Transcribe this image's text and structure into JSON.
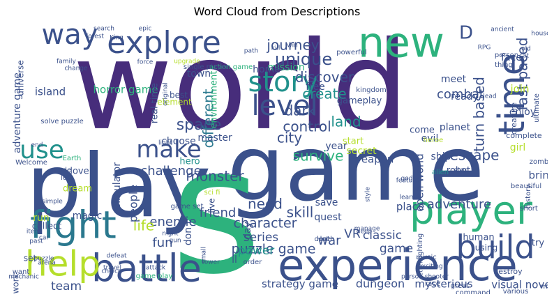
{
  "chart_data": {
    "type": "word_cloud",
    "title": "Word Cloud from Descriptions",
    "xlabel": "",
    "ylabel": "",
    "words": [
      {
        "text": "world",
        "weight": 1.0,
        "color": "#472d7b"
      },
      {
        "text": "game",
        "weight": 0.82,
        "color": "#3b518b"
      },
      {
        "text": "play",
        "weight": 0.72,
        "color": "#3b518b"
      },
      {
        "text": "s",
        "weight": 0.7,
        "color": "#2db27d"
      },
      {
        "text": "experience",
        "weight": 0.42,
        "color": "#3b518b"
      },
      {
        "text": "new",
        "weight": 0.38,
        "color": "#2db27d"
      },
      {
        "text": "battle",
        "weight": 0.36,
        "color": "#3b518b"
      },
      {
        "text": "explore",
        "weight": 0.34,
        "color": "#3b518b"
      },
      {
        "text": "player",
        "weight": 0.34,
        "color": "#2db27d"
      },
      {
        "text": "way",
        "weight": 0.32,
        "color": "#3b518b"
      },
      {
        "text": "help",
        "weight": 0.31,
        "color": "#b5de2b"
      },
      {
        "text": "fight",
        "weight": 0.3,
        "color": "#2a788e"
      },
      {
        "text": "time",
        "weight": 0.28,
        "color": "#3b518b"
      },
      {
        "text": "level",
        "weight": 0.27,
        "color": "#3b518b"
      },
      {
        "text": "build",
        "weight": 0.27,
        "color": "#3b518b"
      },
      {
        "text": "story",
        "weight": 0.25,
        "color": "#21918c"
      },
      {
        "text": "make",
        "weight": 0.23,
        "color": "#3b518b"
      },
      {
        "text": "use",
        "weight": 0.22,
        "color": "#21918c"
      },
      {
        "text": "D",
        "weight": 0.14,
        "color": "#3b518b"
      },
      {
        "text": "unique",
        "weight": 0.14,
        "color": "#3b518b"
      },
      {
        "text": "journey",
        "weight": 0.12,
        "color": "#3b518b"
      },
      {
        "text": "discover",
        "weight": 0.12,
        "color": "#3b518b"
      },
      {
        "text": "create",
        "weight": 0.13,
        "color": "#21918c"
      },
      {
        "text": "dark",
        "weight": 0.13,
        "color": "#3b518b"
      },
      {
        "text": "land",
        "weight": 0.13,
        "color": "#21918c"
      },
      {
        "text": "control",
        "weight": 0.12,
        "color": "#3b518b"
      },
      {
        "text": "city",
        "weight": 0.12,
        "color": "#3b518b"
      },
      {
        "text": "space",
        "weight": 0.12,
        "color": "#3b518b"
      },
      {
        "text": "different",
        "weight": 0.11,
        "color": "#2a788e"
      },
      {
        "text": "survive",
        "weight": 0.11,
        "color": "#2db27d"
      },
      {
        "text": "escape",
        "weight": 0.11,
        "color": "#3b518b"
      },
      {
        "text": "turn based",
        "weight": 0.11,
        "color": "#3b518b"
      },
      {
        "text": "fast paced",
        "weight": 0.11,
        "color": "#3b518b"
      },
      {
        "text": "combat",
        "weight": 0.1,
        "color": "#3b518b"
      },
      {
        "text": "challenge",
        "weight": 0.1,
        "color": "#3b518b"
      },
      {
        "text": "monster",
        "weight": 0.12,
        "color": "#3b518b"
      },
      {
        "text": "character",
        "weight": 0.11,
        "color": "#3b518b"
      },
      {
        "text": "puzzle game",
        "weight": 0.11,
        "color": "#3b518b"
      },
      {
        "text": "adventure",
        "weight": 0.11,
        "color": "#3b518b"
      },
      {
        "text": "skill",
        "weight": 0.12,
        "color": "#3b518b"
      },
      {
        "text": "friend",
        "weight": 0.1,
        "color": "#3b518b"
      },
      {
        "text": "enemie",
        "weight": 0.11,
        "color": "#3b518b"
      },
      {
        "text": "need",
        "weight": 0.11,
        "color": "#3b518b"
      },
      {
        "text": "life",
        "weight": 0.11,
        "color": "#b5de2b"
      },
      {
        "text": "fun",
        "weight": 0.1,
        "color": "#3b518b"
      },
      {
        "text": "VR",
        "weight": 0.1,
        "color": "#3b518b"
      },
      {
        "text": "war",
        "weight": 0.1,
        "color": "#3b518b"
      },
      {
        "text": "classic",
        "weight": 0.1,
        "color": "#3b518b"
      },
      {
        "text": "series",
        "weight": 0.09,
        "color": "#3b518b"
      },
      {
        "text": "power",
        "weight": 0.09,
        "color": "#21918c"
      },
      {
        "text": "team",
        "weight": 0.09,
        "color": "#3b518b"
      },
      {
        "text": "strategy game",
        "weight": 0.07,
        "color": "#3b518b"
      },
      {
        "text": "dungeon",
        "weight": 0.08,
        "color": "#3b518b"
      },
      {
        "text": "mysterious",
        "weight": 0.07,
        "color": "#3b518b"
      },
      {
        "text": "visual novel",
        "weight": 0.07,
        "color": "#3b518b"
      },
      {
        "text": "bring",
        "weight": 0.08,
        "color": "#3b518b"
      },
      {
        "text": "weapon",
        "weight": 0.07,
        "color": "#3b518b"
      },
      {
        "text": "open world",
        "weight": 0.07,
        "color": "#3b518b"
      },
      {
        "text": "place",
        "weight": 0.08,
        "color": "#3b518b"
      },
      {
        "text": "game",
        "weight": 0.08,
        "color": "#3b518b"
      },
      {
        "text": "people",
        "weight": 0.08,
        "color": "#3b518b"
      },
      {
        "text": "horror game",
        "weight": 0.07,
        "color": "#2db27d"
      },
      {
        "text": "island",
        "weight": 0.07,
        "color": "#3b518b"
      },
      {
        "text": "town",
        "weight": 0.07,
        "color": "#3b518b"
      },
      {
        "text": "mission",
        "weight": 0.07,
        "color": "#2db27d"
      },
      {
        "text": "home",
        "weight": 0.07,
        "color": "#3b518b"
      },
      {
        "text": "free",
        "weight": 0.07,
        "color": "#3b518b"
      },
      {
        "text": "gameplay",
        "weight": 0.07,
        "color": "#3b518b"
      },
      {
        "text": "ready",
        "weight": 0.07,
        "color": "#3b518b"
      },
      {
        "text": "face",
        "weight": 0.07,
        "color": "#3b518b"
      },
      {
        "text": "join",
        "weight": 0.07,
        "color": "#b5de2b"
      },
      {
        "text": "planet",
        "weight": 0.07,
        "color": "#3b518b"
      },
      {
        "text": "meet",
        "weight": 0.07,
        "color": "#3b518b"
      },
      {
        "text": "evil",
        "weight": 0.07,
        "color": "#3b518b"
      },
      {
        "text": "ship",
        "weight": 0.07,
        "color": "#3b518b"
      },
      {
        "text": "girl",
        "weight": 0.07,
        "color": "#b5de2b"
      },
      {
        "text": "enjoy",
        "weight": 0.07,
        "color": "#3b518b"
      },
      {
        "text": "come",
        "weight": 0.06,
        "color": "#3b518b"
      },
      {
        "text": "robot",
        "weight": 0.06,
        "color": "#3b518b"
      },
      {
        "text": "year",
        "weight": 0.06,
        "color": "#3b518b"
      },
      {
        "text": "start",
        "weight": 0.06,
        "color": "#b5de2b"
      },
      {
        "text": "secret",
        "weight": 0.07,
        "color": "#b5de2b"
      },
      {
        "text": "save",
        "weight": 0.07,
        "color": "#3b518b"
      },
      {
        "text": "quest",
        "weight": 0.07,
        "color": "#3b518b"
      },
      {
        "text": "don t",
        "weight": 0.07,
        "color": "#3b518b"
      },
      {
        "text": "day",
        "weight": 0.06,
        "color": "#3b518b"
      },
      {
        "text": "live",
        "weight": 0.06,
        "color": "#3b518b"
      },
      {
        "text": "choose",
        "weight": 0.06,
        "color": "#3b518b"
      },
      {
        "text": "master",
        "weight": 0.06,
        "color": "#3b518b"
      },
      {
        "text": "hero",
        "weight": 0.06,
        "color": "#21918c"
      },
      {
        "text": "best",
        "weight": 0.06,
        "color": "#3b518b"
      },
      {
        "text": "element",
        "weight": 0.05,
        "color": "#b5de2b"
      },
      {
        "text": "real time",
        "weight": 0.06,
        "color": "#3b518b"
      },
      {
        "text": "environment",
        "weight": 0.05,
        "color": "#2db27d"
      },
      {
        "text": "simulator",
        "weight": 0.06,
        "color": "#3b518b"
      },
      {
        "text": "magic",
        "weight": 0.06,
        "color": "#3b518b"
      },
      {
        "text": "dream",
        "weight": 0.06,
        "color": "#b5de2b"
      },
      {
        "text": "love",
        "weight": 0.06,
        "color": "#3b518b"
      },
      {
        "text": "run",
        "weight": 0.06,
        "color": "#b5de2b"
      },
      {
        "text": "collect",
        "weight": 0.06,
        "color": "#3b518b"
      },
      {
        "text": "set",
        "weight": 0.06,
        "color": "#3b518b"
      },
      {
        "text": "work",
        "weight": 0.05,
        "color": "#3b518b"
      },
      {
        "text": "ll",
        "weight": 0.06,
        "color": "#3b518b"
      },
      {
        "text": "adventure game",
        "weight": 0.07,
        "color": "#3b518b"
      },
      {
        "text": "universe",
        "weight": 0.05,
        "color": "#3b518b"
      },
      {
        "text": "human",
        "weight": 0.06,
        "color": "#3b518b"
      },
      {
        "text": "try",
        "weight": 0.06,
        "color": "#3b518b"
      },
      {
        "text": "using",
        "weight": 0.05,
        "color": "#3b518b"
      },
      {
        "text": "destroy",
        "weight": 0.04,
        "color": "#3b518b"
      },
      {
        "text": "creature",
        "weight": 0.04,
        "color": "#3b518b"
      },
      {
        "text": "complete",
        "weight": 0.04,
        "color": "#3b518b"
      },
      {
        "text": "action game",
        "weight": 0.04,
        "color": "#2db27d"
      },
      {
        "text": "single player",
        "weight": 0.04,
        "color": "#3b518b"
      },
      {
        "text": "kingdom",
        "weight": 0.04,
        "color": "#3b518b"
      },
      {
        "text": "powerful",
        "weight": 0.04,
        "color": "#3b518b"
      },
      {
        "text": "thing",
        "weight": 0.04,
        "color": "#3b518b"
      },
      {
        "text": "person",
        "weight": 0.04,
        "color": "#3b518b"
      },
      {
        "text": "ultimate",
        "weight": 0.04,
        "color": "#3b518b"
      },
      {
        "text": "zombie",
        "weight": 0.04,
        "color": "#3b518b"
      },
      {
        "text": "heroe",
        "weight": 0.04,
        "color": "#b5de2b"
      },
      {
        "text": "alien",
        "weight": 0.04,
        "color": "#21918c"
      },
      {
        "text": "star",
        "weight": 0.04,
        "color": "#3b518b"
      },
      {
        "text": "sci fi",
        "weight": 0.04,
        "color": "#b5de2b"
      },
      {
        "text": "game set",
        "weight": 0.04,
        "color": "#3b518b"
      },
      {
        "text": "Welcome",
        "weight": 0.04,
        "color": "#3b518b"
      },
      {
        "text": "solve puzzle",
        "weight": 0.04,
        "color": "#3b518b"
      },
      {
        "text": "Earth",
        "weight": 0.04,
        "color": "#2db27d"
      },
      {
        "text": "mode",
        "weight": 0.04,
        "color": "#3b518b"
      },
      {
        "text": "lost",
        "weight": 0.04,
        "color": "#3b518b"
      },
      {
        "text": "order",
        "weight": 0.04,
        "color": "#3b518b"
      },
      {
        "text": "various",
        "weight": 0.04,
        "color": "#3b518b"
      },
      {
        "text": "map",
        "weight": 0.04,
        "color": "#3b518b"
      },
      {
        "text": "command",
        "weight": 0.04,
        "color": "#3b518b"
      },
      {
        "text": "great",
        "weight": 0.04,
        "color": "#3b518b"
      },
      {
        "text": "race",
        "weight": 0.04,
        "color": "#3b518b"
      },
      {
        "text": "death",
        "weight": 0.04,
        "color": "#3b518b"
      },
      {
        "text": "lot",
        "weight": 0.04,
        "color": "#3b518b"
      },
      {
        "text": "music",
        "weight": 0.04,
        "color": "#3b518b"
      },
      {
        "text": "want",
        "weight": 0.04,
        "color": "#3b518b"
      },
      {
        "text": "game play",
        "weight": 0.04,
        "color": "#2db27d"
      },
      {
        "text": "fighting",
        "weight": 0.03,
        "color": "#3b518b"
      },
      {
        "text": "history",
        "weight": 0.03,
        "color": "#3b518b"
      },
      {
        "text": "short",
        "weight": 0.03,
        "color": "#3b518b"
      },
      {
        "text": "beautiful",
        "weight": 0.03,
        "color": "#3b518b"
      },
      {
        "text": "ancient",
        "weight": 0.03,
        "color": "#3b518b"
      },
      {
        "text": "house",
        "weight": 0.03,
        "color": "#3b518b"
      },
      {
        "text": "RPG",
        "weight": 0.03,
        "color": "#3b518b"
      },
      {
        "text": "old",
        "weight": 0.03,
        "color": "#3b518b"
      },
      {
        "text": "cat",
        "weight": 0.03,
        "color": "#3b518b"
      },
      {
        "text": "search",
        "weight": 0.03,
        "color": "#3b518b"
      },
      {
        "text": "epic",
        "weight": 0.03,
        "color": "#3b518b"
      },
      {
        "text": "forest",
        "weight": 0.03,
        "color": "#3b518b"
      },
      {
        "text": "King",
        "weight": 0.03,
        "color": "#3b518b"
      },
      {
        "text": "change",
        "weight": 0.03,
        "color": "#3b518b"
      },
      {
        "text": "family",
        "weight": 0.03,
        "color": "#3b518b"
      },
      {
        "text": "force",
        "weight": 0.03,
        "color": "#3b518b"
      },
      {
        "text": "upgrade",
        "weight": 0.03,
        "color": "#b5de2b"
      },
      {
        "text": "original",
        "weight": 0.03,
        "color": "#3b518b"
      },
      {
        "text": "light",
        "weight": 0.03,
        "color": "#3b518b"
      },
      {
        "text": "night",
        "weight": 0.03,
        "color": "#3b518b"
      },
      {
        "text": "gun",
        "weight": 0.03,
        "color": "#3b518b"
      },
      {
        "text": "attack",
        "weight": 0.03,
        "color": "#3b518b"
      },
      {
        "text": "defeat",
        "weight": 0.03,
        "color": "#3b518b"
      },
      {
        "text": "puzzle",
        "weight": 0.03,
        "color": "#3b518b"
      },
      {
        "text": "past",
        "weight": 0.03,
        "color": "#3b518b"
      },
      {
        "text": "item",
        "weight": 0.03,
        "color": "#3b518b"
      },
      {
        "text": "simple",
        "weight": 0.03,
        "color": "#3b518b"
      },
      {
        "text": "car",
        "weight": 0.03,
        "color": "#3b518b"
      },
      {
        "text": "arena",
        "weight": 0.03,
        "color": "#3b518b"
      },
      {
        "text": "mechanic",
        "weight": 0.03,
        "color": "#3b518b"
      },
      {
        "text": "travel",
        "weight": 0.03,
        "color": "#3b518b"
      },
      {
        "text": "choice",
        "weight": 0.03,
        "color": "#3b518b"
      },
      {
        "text": "tower",
        "weight": 0.03,
        "color": "#3b518b"
      },
      {
        "text": "small",
        "weight": 0.03,
        "color": "#3b518b"
      },
      {
        "text": "manage",
        "weight": 0.03,
        "color": "#3b518b"
      },
      {
        "text": "deep",
        "weight": 0.03,
        "color": "#3b518b"
      },
      {
        "text": "return",
        "weight": 0.03,
        "color": "#3b518b"
      },
      {
        "text": "person shooter",
        "weight": 0.03,
        "color": "#3b518b"
      },
      {
        "text": "exciting",
        "weight": 0.03,
        "color": "#3b518b"
      },
      {
        "text": "feature",
        "weight": 0.03,
        "color": "#3b518b"
      },
      {
        "text": "god",
        "weight": 0.03,
        "color": "#3b518b"
      },
      {
        "text": "learn",
        "weight": 0.03,
        "color": "#3b518b"
      },
      {
        "text": "style",
        "weight": 0.03,
        "color": "#3b518b"
      },
      {
        "text": "end",
        "weight": 0.03,
        "color": "#3b518b"
      },
      {
        "text": "win",
        "weight": 0.03,
        "color": "#3b518b"
      },
      {
        "text": "path",
        "weight": 0.03,
        "color": "#3b518b"
      },
      {
        "text": "kill",
        "weight": 0.03,
        "color": "#3b518b"
      },
      {
        "text": "lead",
        "weight": 0.03,
        "color": "#3b518b"
      }
    ]
  }
}
